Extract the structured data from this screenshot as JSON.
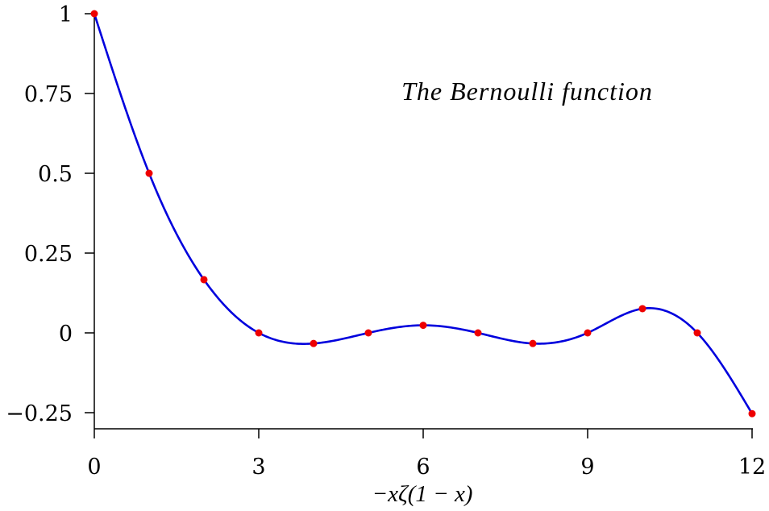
{
  "chart_data": {
    "type": "line",
    "title": "The Bernoulli function",
    "xlabel": "−xζ(1 − x)",
    "ylabel": "",
    "xlim": [
      0,
      12
    ],
    "ylim": [
      -0.3,
      1
    ],
    "x_ticks": [
      0,
      3,
      6,
      9,
      12
    ],
    "x_tick_labels": [
      "0",
      "3",
      "6",
      "9",
      "12"
    ],
    "y_ticks": [
      1,
      0.75,
      0.5,
      0.25,
      0,
      -0.25
    ],
    "y_tick_labels": [
      "1",
      "0.75",
      "0.5",
      "0.25",
      "0",
      "−0.25"
    ],
    "grid": false,
    "series": [
      {
        "x": [
          0,
          1,
          2,
          3,
          4,
          5,
          6,
          7,
          8,
          9,
          10,
          11,
          12
        ],
        "values": [
          1,
          0.5,
          0.1667,
          0,
          -0.0333,
          0,
          0.0238,
          0,
          -0.0333,
          0,
          0.0758,
          0,
          -0.2531
        ],
        "line_color": "#0000dd",
        "marker_color": "#ee0000"
      }
    ]
  }
}
